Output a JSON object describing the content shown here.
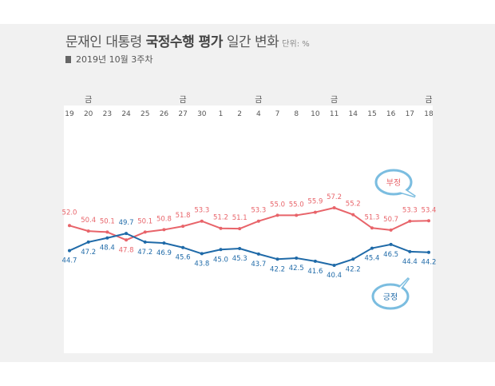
{
  "header": {
    "title_pre": "문재인 대통령 ",
    "title_bold": "국정수행 평가",
    "title_post": " 일간 변화",
    "unit": "단위: %",
    "subtitle": "2019년 10월 3주차"
  },
  "bubbles": {
    "negative": "부정",
    "positive": "긍정"
  },
  "colors": {
    "negative": "#e8646a",
    "positive": "#1f6aa8",
    "bubble_border": "#7bbde0",
    "panel": "#f1f1f1"
  },
  "chart_data": {
    "type": "line",
    "friday_mark": "금",
    "categories": [
      "19",
      "20",
      "23",
      "24",
      "25",
      "26",
      "27",
      "30",
      "1",
      "2",
      "4",
      "7",
      "8",
      "10",
      "11",
      "14",
      "15",
      "16",
      "17",
      "18"
    ],
    "friday_flags": [
      false,
      true,
      false,
      false,
      false,
      false,
      true,
      false,
      false,
      false,
      true,
      false,
      false,
      false,
      true,
      false,
      false,
      false,
      false,
      true
    ],
    "series": [
      {
        "name": "부정",
        "key": "negative",
        "values": [
          52.0,
          50.4,
          50.1,
          47.8,
          50.1,
          50.8,
          51.8,
          53.3,
          51.2,
          51.1,
          53.3,
          55.0,
          55.0,
          55.9,
          57.2,
          55.2,
          51.3,
          50.7,
          53.3,
          53.4
        ],
        "labels": [
          "52.0",
          "50.4",
          "50.1",
          "47.8",
          "50.1",
          "50.8",
          "51.8",
          "53.3",
          "51.2",
          "51.1",
          "53.3",
          "55.0",
          "55.0",
          "55.9",
          "57.2",
          "55.2",
          "51.3",
          "50.7",
          "53.3",
          "53.4"
        ]
      },
      {
        "name": "긍정",
        "key": "positive",
        "values": [
          44.7,
          47.2,
          48.4,
          49.7,
          47.2,
          46.9,
          45.6,
          43.8,
          45.0,
          45.3,
          43.7,
          42.2,
          42.5,
          41.6,
          40.4,
          42.2,
          45.4,
          46.5,
          44.4,
          44.2
        ],
        "labels": [
          "44.7",
          "47.2",
          "48.4",
          "49.7",
          "47.2",
          "46.9",
          "45.6",
          "43.8",
          "45.0",
          "45.3",
          "43.7",
          "42.2",
          "42.5",
          "41.6",
          "40.4",
          "42.2",
          "45.4",
          "46.5",
          "44.4",
          "44.2"
        ]
      }
    ],
    "grid": false
  }
}
